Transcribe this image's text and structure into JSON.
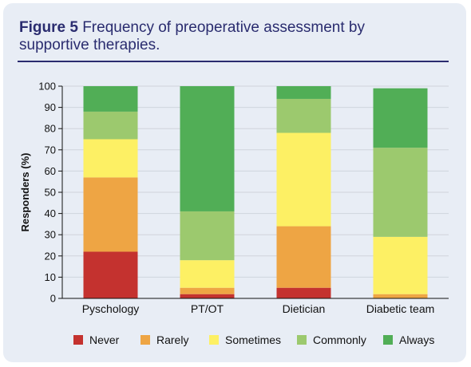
{
  "figure": {
    "label": "Figure 5",
    "caption": "Frequency of preoperative assessment by supportive therapies."
  },
  "colors": {
    "title": "#2a2c6f",
    "frame_bg": "#e8edf5",
    "never": "#c4322f",
    "rarely": "#eea544",
    "sometimes": "#fdf064",
    "commonly": "#9cc96e",
    "always": "#51ae56",
    "grid": "#cfd4dc"
  },
  "chart_data": {
    "type": "bar",
    "stacked": true,
    "title": "",
    "xlabel": "",
    "ylabel": "Responders (%)",
    "ylim": [
      0,
      100
    ],
    "yticks": [
      0,
      10,
      20,
      30,
      40,
      50,
      60,
      70,
      80,
      90,
      100
    ],
    "grid": true,
    "legend_position": "bottom",
    "categories": [
      "Pyschology",
      "PT/OT",
      "Dietician",
      "Diabetic team"
    ],
    "series": [
      {
        "name": "Never",
        "color": "#c4322f",
        "values": [
          22,
          2,
          5,
          0
        ]
      },
      {
        "name": "Rarely",
        "color": "#eea544",
        "values": [
          35,
          3,
          29,
          2
        ]
      },
      {
        "name": "Sometimes",
        "color": "#fdf064",
        "values": [
          18,
          13,
          44,
          27
        ]
      },
      {
        "name": "Commonly",
        "color": "#9cc96e",
        "values": [
          13,
          23,
          16,
          42
        ]
      },
      {
        "name": "Always",
        "color": "#51ae56",
        "values": [
          12,
          59,
          6,
          28
        ]
      }
    ]
  }
}
